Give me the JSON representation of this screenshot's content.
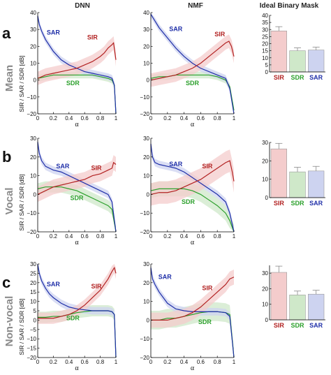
{
  "column_titles": [
    "DNN",
    "NMF",
    "Ideal Binary Mask"
  ],
  "rows": [
    {
      "letter": "a",
      "name": "Mean"
    },
    {
      "letter": "b",
      "name": "Vocal"
    },
    {
      "letter": "c",
      "name": "Non-vocal"
    }
  ],
  "y_axis_label": "SIR / SAR / SDR [dB]",
  "x_axis_label": "α",
  "colors": {
    "SIR": "#b22222",
    "SAR": "#1f2fa8",
    "SDR": "#2ca02c",
    "SIR_light": "#f4cccc",
    "SAR_light": "#cdd3f0",
    "SDR_light": "#cfe8c9",
    "olive_band": "#c8c4a0"
  },
  "chart_data": [
    {
      "type": "line",
      "row": "a",
      "column": "DNN",
      "xlim": [
        0,
        1
      ],
      "ylim": [
        -20,
        40
      ],
      "x_ticks": [
        0,
        0.2,
        0.4,
        0.6,
        0.8,
        1
      ],
      "x_tick_labels": [
        "0",
        "0.2",
        "0.4",
        "0.6",
        "0.8",
        "1"
      ],
      "y_ticks": [
        -20,
        -10,
        0,
        10,
        20,
        30,
        40
      ],
      "y_tick_labels": [
        "−20",
        "−10",
        "0",
        "10",
        "20",
        "30",
        "40"
      ],
      "series": [
        {
          "name": "SAR",
          "x": [
            0,
            0.02,
            0.05,
            0.1,
            0.2,
            0.3,
            0.4,
            0.5,
            0.6,
            0.7,
            0.8,
            0.9,
            0.95,
            0.98,
            1.0
          ],
          "values": [
            38,
            33,
            29,
            24,
            17,
            12,
            9,
            7,
            5,
            4,
            3,
            2,
            1,
            -3,
            -20
          ],
          "band": 2
        },
        {
          "name": "SIR",
          "x": [
            0,
            0.1,
            0.2,
            0.3,
            0.4,
            0.5,
            0.6,
            0.7,
            0.8,
            0.85,
            0.9,
            0.95,
            0.97,
            1.0
          ],
          "values": [
            1,
            3,
            4,
            5,
            6,
            7,
            9,
            11,
            14,
            16,
            19,
            21,
            22,
            12
          ],
          "band": 4
        },
        {
          "name": "SDR",
          "x": [
            0,
            0.1,
            0.2,
            0.3,
            0.4,
            0.5,
            0.6,
            0.7,
            0.8,
            0.9,
            0.95,
            0.98,
            1.0
          ],
          "values": [
            1,
            2,
            3,
            3,
            3,
            3,
            3,
            3,
            2,
            1,
            0,
            -3,
            -20
          ],
          "band": 2
        }
      ]
    },
    {
      "type": "line",
      "row": "a",
      "column": "NMF",
      "xlim": [
        0,
        1
      ],
      "ylim": [
        -20,
        40
      ],
      "x_ticks": [
        0,
        0.2,
        0.4,
        0.6,
        0.8,
        1
      ],
      "x_tick_labels": [
        "0",
        "0.2",
        "0.4",
        "0.6",
        "0.8",
        "1"
      ],
      "y_ticks": [
        -20,
        -10,
        0,
        10,
        20,
        30,
        40
      ],
      "y_tick_labels": [
        "−20",
        "−10",
        "0",
        "10",
        "20",
        "30",
        "40"
      ],
      "series": [
        {
          "name": "SAR",
          "x": [
            0,
            0.05,
            0.1,
            0.2,
            0.3,
            0.4,
            0.5,
            0.6,
            0.7,
            0.8,
            0.9,
            0.95,
            1.0
          ],
          "values": [
            39,
            35,
            31,
            25,
            19,
            14,
            10,
            7,
            5,
            3,
            1,
            -5,
            -20
          ],
          "band": 2
        },
        {
          "name": "SIR",
          "x": [
            0,
            0.1,
            0.2,
            0.3,
            0.4,
            0.5,
            0.6,
            0.7,
            0.8,
            0.9,
            0.94,
            0.97,
            1.0
          ],
          "values": [
            0,
            1,
            2,
            3,
            5,
            7,
            10,
            14,
            18,
            22,
            23,
            20,
            14
          ],
          "band": 4
        },
        {
          "name": "SDR",
          "x": [
            0,
            0.1,
            0.2,
            0.3,
            0.4,
            0.5,
            0.6,
            0.7,
            0.8,
            0.9,
            0.95,
            1.0
          ],
          "values": [
            1,
            2,
            2,
            3,
            3,
            3,
            3,
            3,
            2,
            0,
            -4,
            -18
          ],
          "band": 2
        }
      ]
    },
    {
      "type": "bar",
      "row": "a",
      "column": "Ideal Binary Mask",
      "categories": [
        "SIR",
        "SDR",
        "SAR"
      ],
      "values": [
        29,
        15,
        15.5
      ],
      "errors": [
        3,
        2,
        2
      ],
      "ylim": [
        0,
        40
      ],
      "y_ticks": [
        0,
        5,
        10,
        15,
        20,
        25,
        30,
        35,
        40
      ],
      "y_tick_labels": [
        "0",
        "5",
        "10",
        "15",
        "20",
        "25",
        "30",
        "35",
        "40"
      ]
    },
    {
      "type": "line",
      "row": "b",
      "column": "DNN",
      "xlim": [
        0,
        1
      ],
      "ylim": [
        -20,
        30
      ],
      "x_ticks": [
        0,
        0.2,
        0.4,
        0.6,
        0.8,
        1
      ],
      "x_tick_labels": [
        "0",
        "0.2",
        "0.4",
        "0.6",
        "0.8",
        "1"
      ],
      "y_ticks": [
        -20,
        -10,
        0,
        10,
        20,
        30
      ],
      "y_tick_labels": [
        "−20",
        "−10",
        "0",
        "10",
        "20",
        "30"
      ],
      "series": [
        {
          "name": "SAR",
          "x": [
            0,
            0.02,
            0.05,
            0.1,
            0.2,
            0.3,
            0.4,
            0.5,
            0.6,
            0.7,
            0.8,
            0.9,
            0.95,
            1.0
          ],
          "values": [
            28,
            22,
            18,
            15,
            13,
            12,
            10,
            8,
            6,
            4,
            2,
            0,
            -4,
            -20
          ],
          "band": 2
        },
        {
          "name": "SIR",
          "x": [
            0,
            0.1,
            0.2,
            0.3,
            0.4,
            0.5,
            0.6,
            0.7,
            0.8,
            0.9,
            0.95,
            0.97,
            1.0
          ],
          "values": [
            0,
            2,
            4,
            5,
            6,
            7,
            8,
            10,
            11,
            13,
            14,
            17,
            16
          ],
          "band": 4
        },
        {
          "name": "SDR",
          "x": [
            0,
            0.1,
            0.2,
            0.3,
            0.4,
            0.5,
            0.6,
            0.7,
            0.8,
            0.9,
            0.95,
            1.0
          ],
          "values": [
            3,
            4,
            4,
            4,
            3,
            2,
            0,
            -2,
            -4,
            -6,
            -8,
            -20
          ],
          "band": 3
        }
      ]
    },
    {
      "type": "line",
      "row": "b",
      "column": "NMF",
      "xlim": [
        0,
        1
      ],
      "ylim": [
        -20,
        30
      ],
      "x_ticks": [
        0,
        0.2,
        0.4,
        0.6,
        0.8,
        1
      ],
      "x_tick_labels": [
        "0",
        "0.2",
        "0.4",
        "0.6",
        "0.8",
        "1"
      ],
      "y_ticks": [
        -20,
        -10,
        0,
        10,
        20,
        30
      ],
      "y_tick_labels": [
        "−20",
        "−10",
        "0",
        "10",
        "20",
        "30"
      ],
      "series": [
        {
          "name": "SAR",
          "x": [
            0,
            0.02,
            0.05,
            0.1,
            0.2,
            0.3,
            0.4,
            0.5,
            0.6,
            0.7,
            0.8,
            0.9,
            0.95,
            1.0
          ],
          "values": [
            27,
            20,
            17,
            16,
            15,
            14,
            12,
            9,
            6,
            3,
            0,
            -4,
            -10,
            -20
          ],
          "band": 2
        },
        {
          "name": "SIR",
          "x": [
            0,
            0.1,
            0.2,
            0.3,
            0.4,
            0.5,
            0.6,
            0.7,
            0.8,
            0.9,
            0.95,
            0.98,
            1.0
          ],
          "values": [
            0,
            1,
            1,
            2,
            4,
            6,
            8,
            11,
            14,
            17,
            18,
            12,
            7
          ],
          "band": 6
        },
        {
          "name": "SDR",
          "x": [
            0,
            0.1,
            0.2,
            0.3,
            0.4,
            0.5,
            0.6,
            0.7,
            0.8,
            0.9,
            0.95,
            1.0
          ],
          "values": [
            2,
            3,
            3,
            3,
            3,
            2,
            0,
            -3,
            -6,
            -10,
            -14,
            -20
          ],
          "band": 4
        }
      ]
    },
    {
      "type": "bar",
      "row": "b",
      "column": "Ideal Binary Mask",
      "categories": [
        "SIR",
        "SDR",
        "SAR"
      ],
      "values": [
        26.5,
        14,
        14.5
      ],
      "errors": [
        3,
        2.5,
        2.5
      ],
      "ylim": [
        0,
        30
      ],
      "y_ticks": [
        0,
        10,
        20,
        30
      ],
      "y_tick_labels": [
        "0",
        "10",
        "20",
        "30"
      ]
    },
    {
      "type": "line",
      "row": "c",
      "column": "DNN",
      "xlim": [
        0,
        1
      ],
      "ylim": [
        -20,
        30
      ],
      "x_ticks": [
        0,
        0.2,
        0.4,
        0.6,
        0.8,
        1
      ],
      "x_tick_labels": [
        "0",
        "0.2",
        "0.4",
        "0.6",
        "0.8",
        "1"
      ],
      "y_ticks": [
        -20,
        -15,
        -10,
        -5,
        0,
        5,
        10,
        15,
        20,
        25,
        30
      ],
      "y_tick_labels": [
        "−20",
        "−15",
        "−10",
        "−5",
        "0",
        "5",
        "10",
        "15",
        "20",
        "25",
        "30"
      ],
      "series": [
        {
          "name": "SAR",
          "x": [
            0,
            0.02,
            0.05,
            0.1,
            0.15,
            0.2,
            0.3,
            0.4,
            0.5,
            0.6,
            0.7,
            0.8,
            0.9,
            0.95,
            0.98,
            1.0
          ],
          "values": [
            30,
            25,
            21,
            17,
            14,
            12,
            9,
            7,
            6,
            5.5,
            5,
            5,
            5,
            4.5,
            3,
            -20
          ],
          "band": 2
        },
        {
          "name": "SIR",
          "x": [
            0,
            0.1,
            0.2,
            0.3,
            0.4,
            0.5,
            0.6,
            0.7,
            0.8,
            0.9,
            0.95,
            0.98,
            1.0
          ],
          "values": [
            1,
            1,
            1,
            2,
            3,
            5,
            8,
            12,
            16,
            22,
            26,
            28,
            25
          ],
          "band": 3
        },
        {
          "name": "SDR",
          "x": [
            0,
            0.1,
            0.2,
            0.3,
            0.4,
            0.5,
            0.6,
            0.7,
            0.8,
            0.9,
            0.95,
            0.98,
            1.0
          ],
          "values": [
            1.5,
            1.5,
            2,
            2,
            3,
            4,
            4.5,
            5,
            5,
            5,
            4.5,
            3,
            -20
          ],
          "band": 3
        }
      ]
    },
    {
      "type": "line",
      "row": "c",
      "column": "NMF",
      "xlim": [
        0,
        1
      ],
      "ylim": [
        -20,
        30
      ],
      "x_ticks": [
        0,
        0.2,
        0.4,
        0.6,
        0.8,
        1
      ],
      "x_tick_labels": [
        "0",
        "0.2",
        "0.4",
        "0.6",
        "0.8",
        "1"
      ],
      "y_ticks": [
        -20,
        -10,
        0,
        10,
        20,
        30
      ],
      "y_tick_labels": [
        "−20",
        "−10",
        "0",
        "10",
        "20",
        "30"
      ],
      "series": [
        {
          "name": "SAR",
          "x": [
            0,
            0.02,
            0.05,
            0.1,
            0.15,
            0.2,
            0.3,
            0.4,
            0.5,
            0.6,
            0.7,
            0.8,
            0.9,
            0.95,
            1.0
          ],
          "values": [
            28,
            22,
            19,
            15,
            12,
            9,
            6,
            5,
            4.5,
            4.5,
            4.5,
            4.5,
            4,
            2,
            -20
          ],
          "band": 2
        },
        {
          "name": "SIR",
          "x": [
            0,
            0.1,
            0.2,
            0.3,
            0.4,
            0.5,
            0.6,
            0.7,
            0.8,
            0.9,
            0.95,
            1.0
          ],
          "values": [
            0,
            0,
            0,
            1,
            2,
            4,
            7,
            11,
            15,
            19,
            22,
            23
          ],
          "band": 4
        },
        {
          "name": "SDR",
          "x": [
            0,
            0.1,
            0.2,
            0.3,
            0.4,
            0.5,
            0.6,
            0.7,
            0.8,
            0.9,
            0.95,
            1.0
          ],
          "values": [
            0,
            0,
            1,
            1,
            2,
            3,
            4,
            4.5,
            4.5,
            4,
            3,
            -20
          ],
          "band": 5
        }
      ]
    },
    {
      "type": "bar",
      "row": "c",
      "column": "Ideal Binary Mask",
      "categories": [
        "SIR",
        "SDR",
        "SAR"
      ],
      "values": [
        30.5,
        16,
        16.5
      ],
      "errors": [
        4,
        2.5,
        2.5
      ],
      "ylim": [
        0,
        35
      ],
      "y_ticks": [
        0,
        10,
        20,
        30
      ],
      "y_tick_labels": [
        "0",
        "10",
        "20",
        "30"
      ]
    }
  ]
}
